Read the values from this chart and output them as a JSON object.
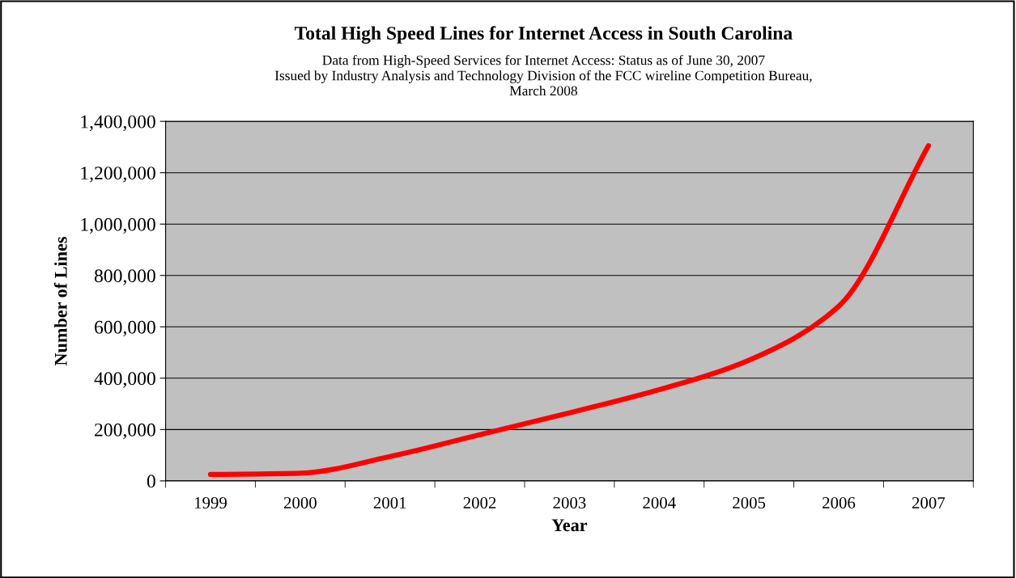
{
  "chart_data": {
    "type": "line",
    "title": "Total High Speed Lines for Internet Access in South Carolina",
    "subtitle": "Data from High-Speed Services for Internet Access: Status as of June 30, 2007\nIssued by Industry Analysis and Technology Division of the FCC wireline Competition Bureau,\nMarch 2008",
    "xlabel": "Year",
    "ylabel": "Number of Lines",
    "categories": [
      "1999",
      "2000",
      "2001",
      "2002",
      "2003",
      "2004",
      "2005",
      "2006",
      "2007"
    ],
    "series": [
      {
        "color": "#ff0000",
        "values": [
          25000,
          30000,
          95000,
          180000,
          265000,
          355000,
          470000,
          680000,
          1305000
        ]
      }
    ],
    "ylim": [
      0,
      1400000
    ],
    "yticks": [
      {
        "value": 0,
        "label": "0"
      },
      {
        "value": 200000,
        "label": "200,000"
      },
      {
        "value": 400000,
        "label": "400,000"
      },
      {
        "value": 600000,
        "label": "600,000"
      },
      {
        "value": 800000,
        "label": "800,000"
      },
      {
        "value": 1000000,
        "label": "1,000,000"
      },
      {
        "value": 1200000,
        "label": "1,200,000"
      },
      {
        "value": 1400000,
        "label": "1,400,000"
      }
    ],
    "grid": "y",
    "legend": false,
    "marker": "none",
    "line_style": "solid"
  }
}
